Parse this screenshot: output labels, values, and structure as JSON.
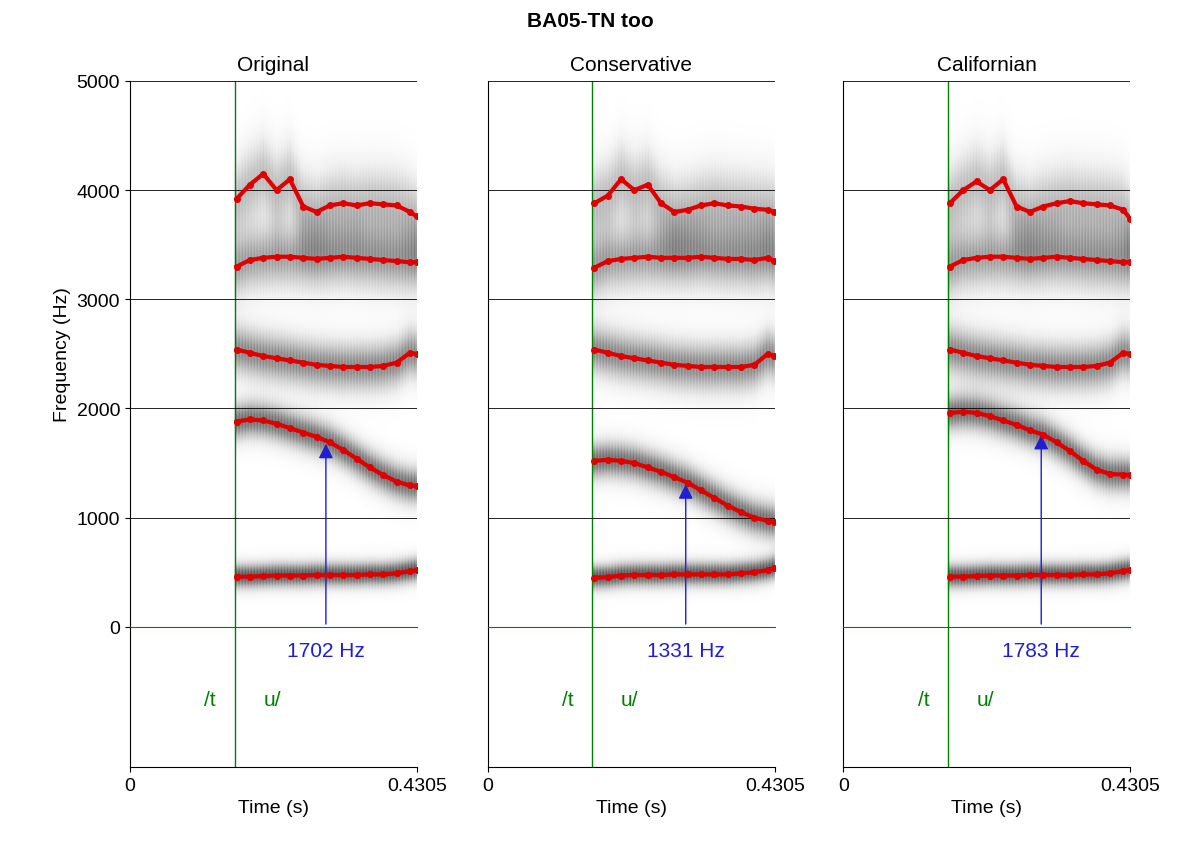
{
  "title": "BA05-TN too",
  "chart_data": [
    {
      "type": "scatter",
      "title": "Original",
      "x_label": "Time (s)",
      "y_label": "Frequency (Hz)",
      "xlim": [
        0,
        0.4305
      ],
      "xticks": [
        0,
        0.4305
      ],
      "ylim": [
        0,
        5000
      ],
      "yticks": [
        0,
        1000,
        2000,
        3000,
        4000,
        5000
      ],
      "grid": true,
      "x": [
        0.16,
        0.18,
        0.2,
        0.22,
        0.24,
        0.26,
        0.28,
        0.3,
        0.32,
        0.34,
        0.36,
        0.38,
        0.4,
        0.42,
        0.43
      ],
      "series": [
        {
          "color": "#e00000",
          "marker": "o",
          "line_style": "solid",
          "values": [
            460,
            460,
            465,
            470,
            470,
            470,
            475,
            475,
            475,
            475,
            480,
            480,
            490,
            510,
            520
          ]
        },
        {
          "color": "#e00000",
          "marker": "o",
          "line_style": "solid",
          "values": [
            1880,
            1900,
            1890,
            1860,
            1820,
            1780,
            1740,
            1690,
            1620,
            1540,
            1460,
            1390,
            1330,
            1295,
            1290
          ]
        },
        {
          "color": "#e00000",
          "marker": "o",
          "line_style": "solid",
          "values": [
            2540,
            2510,
            2480,
            2460,
            2440,
            2420,
            2400,
            2390,
            2380,
            2380,
            2380,
            2390,
            2420,
            2510,
            2500
          ]
        },
        {
          "color": "#e00000",
          "marker": "o",
          "line_style": "solid",
          "values": [
            3300,
            3360,
            3380,
            3390,
            3390,
            3380,
            3370,
            3380,
            3390,
            3380,
            3370,
            3360,
            3350,
            3340,
            3340
          ]
        },
        {
          "color": "#e00000",
          "marker": "o",
          "line_style": "solid",
          "values": [
            3920,
            4050,
            4150,
            4000,
            4100,
            3850,
            3800,
            3860,
            3880,
            3860,
            3880,
            3870,
            3860,
            3800,
            3760
          ]
        }
      ],
      "boundary": 0.157,
      "segment_labels": [
        "/t",
        "u/"
      ],
      "measurement": {
        "x": 0.294,
        "value": 1702,
        "label": "1702 Hz",
        "color": "#1f1fd0"
      },
      "segment_color": "#008000"
    },
    {
      "type": "scatter",
      "title": "Conservative",
      "x_label": "Time (s)",
      "xlim": [
        0,
        0.4305
      ],
      "xticks": [
        0,
        0.4305
      ],
      "ylim": [
        0,
        5000
      ],
      "yticks": [
        0,
        1000,
        2000,
        3000,
        4000,
        5000
      ],
      "grid": true,
      "tick_labels": "x",
      "x": [
        0.16,
        0.18,
        0.2,
        0.22,
        0.24,
        0.26,
        0.28,
        0.3,
        0.32,
        0.34,
        0.36,
        0.38,
        0.4,
        0.42,
        0.43
      ],
      "series": [
        {
          "color": "#e00000",
          "marker": "o",
          "line_style": "solid",
          "values": [
            450,
            455,
            470,
            475,
            475,
            475,
            480,
            480,
            480,
            480,
            480,
            490,
            500,
            520,
            540
          ]
        },
        {
          "color": "#e00000",
          "marker": "o",
          "line_style": "solid",
          "values": [
            1520,
            1530,
            1520,
            1500,
            1460,
            1420,
            1370,
            1320,
            1250,
            1180,
            1110,
            1050,
            1000,
            970,
            960
          ]
        },
        {
          "color": "#e00000",
          "marker": "o",
          "line_style": "solid",
          "values": [
            2540,
            2510,
            2480,
            2460,
            2440,
            2420,
            2400,
            2390,
            2380,
            2380,
            2380,
            2380,
            2400,
            2500,
            2480
          ]
        },
        {
          "color": "#e00000",
          "marker": "o",
          "line_style": "solid",
          "values": [
            3290,
            3350,
            3370,
            3380,
            3390,
            3380,
            3380,
            3380,
            3390,
            3380,
            3370,
            3370,
            3360,
            3380,
            3350
          ]
        },
        {
          "color": "#e00000",
          "marker": "o",
          "line_style": "solid",
          "values": [
            3880,
            3950,
            4100,
            4000,
            4050,
            3880,
            3800,
            3820,
            3860,
            3880,
            3860,
            3850,
            3830,
            3820,
            3800
          ]
        }
      ],
      "boundary": 0.157,
      "segment_labels": [
        "/t",
        "u/"
      ],
      "measurement": {
        "x": 0.297,
        "value": 1331,
        "label": "1331 Hz",
        "color": "#1f1fd0"
      },
      "segment_color": "#008000"
    },
    {
      "type": "scatter",
      "title": "Californian",
      "x_label": "Time (s)",
      "xlim": [
        0,
        0.4305
      ],
      "xticks": [
        0,
        0.4305
      ],
      "ylim": [
        0,
        5000
      ],
      "yticks": [
        0,
        1000,
        2000,
        3000,
        4000,
        5000
      ],
      "grid": true,
      "tick_labels": "x",
      "x": [
        0.16,
        0.18,
        0.2,
        0.22,
        0.24,
        0.26,
        0.28,
        0.3,
        0.32,
        0.34,
        0.36,
        0.38,
        0.4,
        0.42,
        0.43
      ],
      "series": [
        {
          "color": "#e00000",
          "marker": "o",
          "line_style": "solid",
          "values": [
            460,
            460,
            465,
            470,
            470,
            470,
            475,
            475,
            475,
            475,
            480,
            480,
            490,
            510,
            520
          ]
        },
        {
          "color": "#e00000",
          "marker": "o",
          "line_style": "solid",
          "values": [
            1960,
            1970,
            1960,
            1930,
            1890,
            1850,
            1800,
            1760,
            1690,
            1610,
            1520,
            1440,
            1400,
            1395,
            1390
          ]
        },
        {
          "color": "#e00000",
          "marker": "o",
          "line_style": "solid",
          "values": [
            2540,
            2510,
            2480,
            2460,
            2440,
            2420,
            2400,
            2390,
            2380,
            2380,
            2380,
            2390,
            2420,
            2510,
            2500
          ]
        },
        {
          "color": "#e00000",
          "marker": "o",
          "line_style": "solid",
          "values": [
            3300,
            3360,
            3380,
            3390,
            3390,
            3380,
            3370,
            3380,
            3390,
            3380,
            3370,
            3360,
            3350,
            3340,
            3340
          ]
        },
        {
          "color": "#e00000",
          "marker": "o",
          "line_style": "solid",
          "values": [
            3880,
            4000,
            4080,
            4000,
            4100,
            3850,
            3800,
            3850,
            3880,
            3900,
            3880,
            3870,
            3860,
            3820,
            3740
          ]
        }
      ],
      "boundary": 0.157,
      "segment_labels": [
        "/t",
        "u/"
      ],
      "measurement": {
        "x": 0.297,
        "value": 1783,
        "label": "1783 Hz",
        "color": "#1f1fd0"
      },
      "segment_color": "#008000"
    }
  ]
}
